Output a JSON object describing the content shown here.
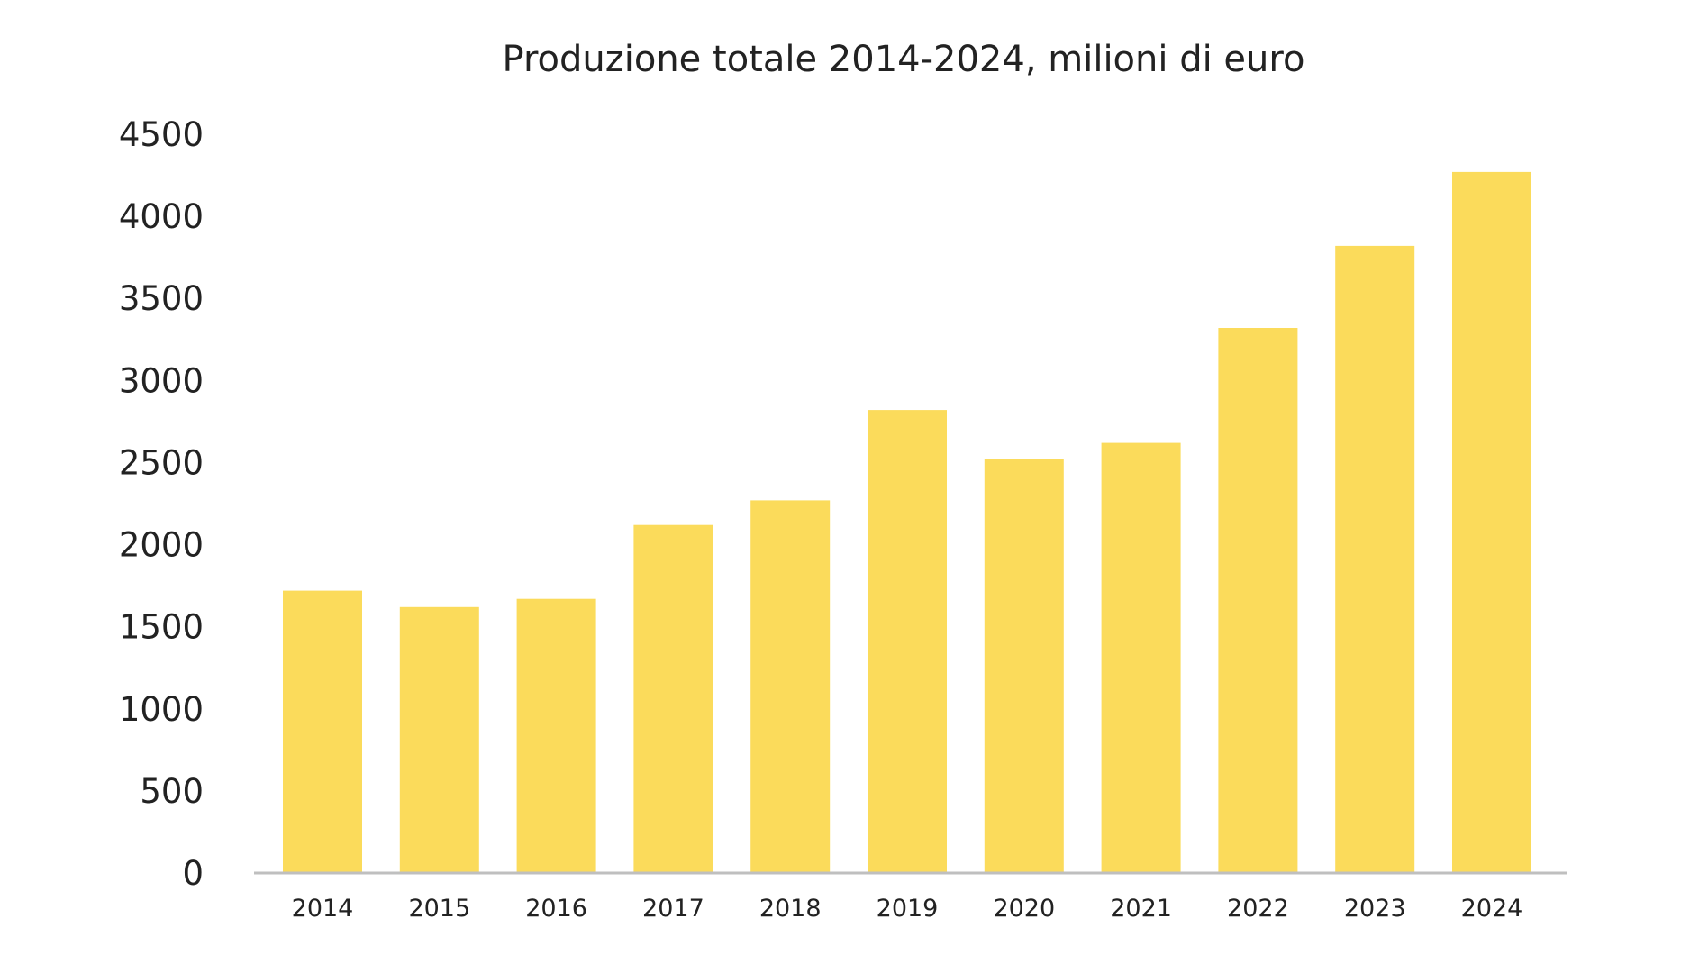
{
  "chart_data": {
    "type": "bar",
    "title": "Produzione totale 2014-2024, milioni di euro",
    "categories": [
      "2014",
      "2015",
      "2016",
      "2017",
      "2018",
      "2019",
      "2020",
      "2021",
      "2022",
      "2023",
      "2024"
    ],
    "values": [
      1720,
      1620,
      1670,
      2120,
      2270,
      2820,
      2520,
      2620,
      3320,
      3820,
      4270
    ],
    "ylim": [
      0,
      4500
    ],
    "yticks": [
      "0",
      "500",
      "1000",
      "1500",
      "2000",
      "2500",
      "3000",
      "3500",
      "4000",
      "4500"
    ],
    "grid": false,
    "legend": "none",
    "bar_color": "#FBDB5B",
    "axis_color": "#BFBFBF",
    "text_color": "#222222"
  }
}
